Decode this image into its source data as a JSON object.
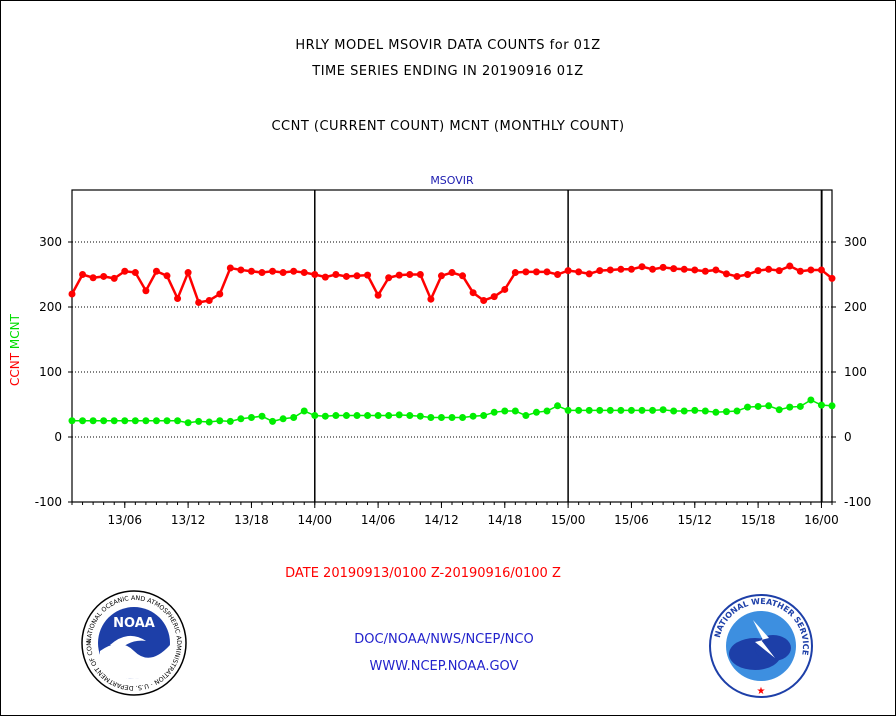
{
  "header": {
    "line1": "HRLY MODEL MSOVIR DATA COUNTS for 01Z",
    "line2": "TIME SERIES ENDING IN 20190916 01Z",
    "line3": "CCNT (CURRENT COUNT) MCNT (MONTHLY COUNT)"
  },
  "footer": {
    "date_range": "DATE 20190913/0100 Z-20190916/0100 Z",
    "org": "DOC/NOAA/NWS/NCEP/NCO",
    "url": "WWW.NCEP.NOAA.GOV"
  },
  "logos": {
    "noaa_text": "NOAA",
    "noaa_ring": "NATIONAL OCEANIC AND ATMOSPHERIC ADMINISTRATION · U.S. DEPARTMENT OF COMMERCE",
    "nws_ring": "NATIONAL WEATHER SERVICE"
  },
  "chart_data": {
    "type": "line",
    "title": "MSOVIR",
    "ylabel_parts": [
      {
        "text": "CCNT",
        "color": "#ff0000"
      },
      {
        "text": "MCNT",
        "color": "#00dd00"
      }
    ],
    "ylim": [
      -100,
      380
    ],
    "yticks": [
      -100,
      0,
      100,
      200,
      300
    ],
    "ytick_labels": [
      "-100",
      "0",
      "100",
      "200",
      "300"
    ],
    "xlim_hours": [
      0,
      72
    ],
    "xticks": [
      {
        "label": "13/06",
        "hour": 5
      },
      {
        "label": "13/12",
        "hour": 11
      },
      {
        "label": "13/18",
        "hour": 17
      },
      {
        "label": "14/00",
        "hour": 23
      },
      {
        "label": "14/06",
        "hour": 29
      },
      {
        "label": "14/12",
        "hour": 35
      },
      {
        "label": "14/18",
        "hour": 41
      },
      {
        "label": "15/00",
        "hour": 47
      },
      {
        "label": "15/06",
        "hour": 53
      },
      {
        "label": "15/12",
        "hour": 59
      },
      {
        "label": "15/18",
        "hour": 65
      },
      {
        "label": "16/00",
        "hour": 71
      }
    ],
    "day_boundaries_hours": [
      23,
      47,
      71
    ],
    "grid": "horizontal dotted",
    "series": [
      {
        "name": "CCNT",
        "color": "#ff0000",
        "values": [
          220,
          250,
          245,
          247,
          244,
          255,
          253,
          225,
          255,
          248,
          213,
          253,
          207,
          210,
          220,
          260,
          257,
          255,
          253,
          255,
          253,
          255,
          253,
          250,
          246,
          250,
          247,
          248,
          249,
          218,
          245,
          249,
          250,
          250,
          212,
          248,
          253,
          248,
          222,
          210,
          216,
          227,
          253,
          254,
          254,
          254,
          250,
          256,
          254,
          251,
          256,
          257,
          258,
          258,
          262,
          258,
          261,
          259,
          258,
          257,
          255,
          257,
          251,
          247,
          250,
          256,
          258,
          256,
          263,
          255,
          257,
          257,
          244
        ]
      },
      {
        "name": "MCNT",
        "color": "#00ee00",
        "values": [
          25,
          25,
          25,
          25,
          25,
          25,
          25,
          25,
          25,
          25,
          25,
          22,
          24,
          23,
          25,
          24,
          28,
          30,
          32,
          24,
          28,
          30,
          40,
          33,
          32,
          33,
          33,
          33,
          33,
          33,
          33,
          34,
          33,
          32,
          30,
          30,
          30,
          30,
          32,
          33,
          38,
          40,
          40,
          33,
          38,
          40,
          48,
          41,
          41,
          41,
          41,
          41,
          41,
          41,
          41,
          41,
          42,
          40,
          40,
          41,
          40,
          38,
          39,
          40,
          46,
          47,
          48,
          42,
          46,
          47,
          57,
          49,
          48
        ]
      }
    ]
  }
}
